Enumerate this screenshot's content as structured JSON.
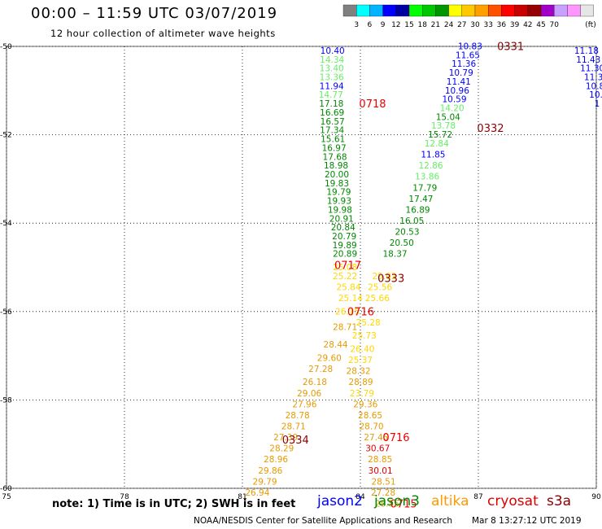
{
  "header": {
    "title": "00:00 – 11:59 UTC 03/07/2019",
    "subtitle": "12 hour collection of altimeter wave heights"
  },
  "color_scale": {
    "colors": [
      "#808080",
      "#00ffff",
      "#00b4ff",
      "#0000ff",
      "#0000a0",
      "#00ff00",
      "#00c800",
      "#009600",
      "#ffff00",
      "#ffc800",
      "#ffa000",
      "#ff5000",
      "#ff0000",
      "#c80000",
      "#960000",
      "#a000c8",
      "#c8a0ff",
      "#ff96ff",
      "#e6e6e6"
    ],
    "labels": [
      "3",
      "6",
      "9",
      "12",
      "15",
      "18",
      "21",
      "24",
      "27",
      "30",
      "33",
      "36",
      "39",
      "42",
      "45",
      "70"
    ],
    "unit": "(ft)"
  },
  "chart_data": {
    "type": "scatter",
    "xlim": [
      75,
      90
    ],
    "ylim": [
      -60,
      -50
    ],
    "x_ticks": [
      "75",
      "78",
      "81",
      "84",
      "87",
      "90"
    ],
    "y_ticks": [
      "-50",
      "-52",
      "-54",
      "-56",
      "-58",
      "-60"
    ],
    "grid": true,
    "points": [
      {
        "x": 83.29,
        "y": -50.1,
        "v": "10.40",
        "c": "#0000ff"
      },
      {
        "x": 83.28,
        "y": -50.3,
        "v": "14.34",
        "c": "#66ee66"
      },
      {
        "x": 83.27,
        "y": -50.5,
        "v": "13.40",
        "c": "#66ee66"
      },
      {
        "x": 83.27,
        "y": -50.7,
        "v": "13.36",
        "c": "#66ee66"
      },
      {
        "x": 83.27,
        "y": -50.9,
        "v": "11.94",
        "c": "#0000ff"
      },
      {
        "x": 83.25,
        "y": -51.1,
        "v": "14.77",
        "c": "#66ee66"
      },
      {
        "x": 83.26,
        "y": -51.3,
        "v": "17.18",
        "c": "#008800"
      },
      {
        "x": 83.28,
        "y": -51.5,
        "v": "16.69",
        "c": "#008800"
      },
      {
        "x": 83.29,
        "y": -51.7,
        "v": "16.57",
        "c": "#008800"
      },
      {
        "x": 83.28,
        "y": -51.9,
        "v": "17.34",
        "c": "#008800"
      },
      {
        "x": 83.3,
        "y": -52.1,
        "v": "15.61",
        "c": "#008800"
      },
      {
        "x": 83.33,
        "y": -52.3,
        "v": "16.97",
        "c": "#008800"
      },
      {
        "x": 83.35,
        "y": -52.5,
        "v": "17.68",
        "c": "#008800"
      },
      {
        "x": 83.38,
        "y": -52.7,
        "v": "18.98",
        "c": "#008800"
      },
      {
        "x": 83.4,
        "y": -52.9,
        "v": "20.00",
        "c": "#008800"
      },
      {
        "x": 83.4,
        "y": -53.1,
        "v": "19.83",
        "c": "#008800"
      },
      {
        "x": 83.45,
        "y": -53.3,
        "v": "19.79",
        "c": "#008800"
      },
      {
        "x": 83.46,
        "y": -53.5,
        "v": "19.93",
        "c": "#008800"
      },
      {
        "x": 83.48,
        "y": -53.7,
        "v": "19.98",
        "c": "#008800"
      },
      {
        "x": 83.52,
        "y": -53.9,
        "v": "20.91",
        "c": "#008800"
      },
      {
        "x": 83.56,
        "y": -54.1,
        "v": "20.84",
        "c": "#008800"
      },
      {
        "x": 83.59,
        "y": -54.3,
        "v": "20.79",
        "c": "#008800"
      },
      {
        "x": 83.6,
        "y": -54.5,
        "v": "19.89",
        "c": "#008800"
      },
      {
        "x": 83.61,
        "y": -54.7,
        "v": "20.89",
        "c": "#008800"
      },
      {
        "x": 83.61,
        "y": -55.0,
        "v": "25.08",
        "c": "#ffd700"
      },
      {
        "x": 83.61,
        "y": -55.2,
        "v": "25.22",
        "c": "#ffd700"
      },
      {
        "x": 83.7,
        "y": -55.45,
        "v": "25.84",
        "c": "#ffd700"
      },
      {
        "x": 83.75,
        "y": -55.7,
        "v": "25.14",
        "c": "#ffd700"
      },
      {
        "x": 83.67,
        "y": -56.0,
        "v": "26.15",
        "c": "#ffd700"
      },
      {
        "x": 83.61,
        "y": -56.35,
        "v": "28.71",
        "c": "#e69b00"
      },
      {
        "x": 83.37,
        "y": -56.75,
        "v": "28.44",
        "c": "#e69b00"
      },
      {
        "x": 83.21,
        "y": -57.05,
        "v": "29.60",
        "c": "#e69b00"
      },
      {
        "x": 82.99,
        "y": -57.3,
        "v": "27.28",
        "c": "#e69b00"
      },
      {
        "x": 82.84,
        "y": -57.6,
        "v": "26.18",
        "c": "#e69b00"
      },
      {
        "x": 82.7,
        "y": -57.85,
        "v": "29.06",
        "c": "#e69b00"
      },
      {
        "x": 82.58,
        "y": -58.1,
        "v": "27.96",
        "c": "#e69b00"
      },
      {
        "x": 82.4,
        "y": -58.35,
        "v": "28.78",
        "c": "#e69b00"
      },
      {
        "x": 82.3,
        "y": -58.6,
        "v": "28.71",
        "c": "#e69b00"
      },
      {
        "x": 82.1,
        "y": -58.85,
        "v": "27.39",
        "c": "#e69b00"
      },
      {
        "x": 82.0,
        "y": -59.1,
        "v": "28.29",
        "c": "#e69b00"
      },
      {
        "x": 81.85,
        "y": -59.35,
        "v": "28.96",
        "c": "#e69b00"
      },
      {
        "x": 81.71,
        "y": -59.6,
        "v": "29.86",
        "c": "#e69b00"
      },
      {
        "x": 81.57,
        "y": -59.85,
        "v": "29.79",
        "c": "#e69b00"
      },
      {
        "x": 81.38,
        "y": -60.1,
        "v": "26.94",
        "c": "#e69b00"
      },
      {
        "x": 86.79,
        "y": -50.0,
        "v": "10.83",
        "c": "#0000ff"
      },
      {
        "x": 86.73,
        "y": -50.2,
        "v": "11.65",
        "c": "#0000ff"
      },
      {
        "x": 86.63,
        "y": -50.4,
        "v": "11.36",
        "c": "#0000ff"
      },
      {
        "x": 86.56,
        "y": -50.6,
        "v": "10.79",
        "c": "#0000ff"
      },
      {
        "x": 86.5,
        "y": -50.8,
        "v": "11.41",
        "c": "#0000ff"
      },
      {
        "x": 86.46,
        "y": -51.0,
        "v": "10.96",
        "c": "#0000ff"
      },
      {
        "x": 86.39,
        "y": -51.2,
        "v": "10.59",
        "c": "#0000ff"
      },
      {
        "x": 86.33,
        "y": -51.4,
        "v": "14.20",
        "c": "#66ee66"
      },
      {
        "x": 86.23,
        "y": -51.6,
        "v": "15.04",
        "c": "#008800"
      },
      {
        "x": 86.11,
        "y": -51.8,
        "v": "13.78",
        "c": "#66ee66"
      },
      {
        "x": 86.03,
        "y": -52.0,
        "v": "15.72",
        "c": "#008800"
      },
      {
        "x": 85.94,
        "y": -52.2,
        "v": "12.84",
        "c": "#66ee66"
      },
      {
        "x": 85.85,
        "y": -52.45,
        "v": "11.85",
        "c": "#0000ff"
      },
      {
        "x": 85.79,
        "y": -52.7,
        "v": "12.86",
        "c": "#66ee66"
      },
      {
        "x": 85.7,
        "y": -52.95,
        "v": "13.86",
        "c": "#66ee66"
      },
      {
        "x": 85.64,
        "y": -53.2,
        "v": "17.79",
        "c": "#008800"
      },
      {
        "x": 85.54,
        "y": -53.45,
        "v": "17.47",
        "c": "#008800"
      },
      {
        "x": 85.46,
        "y": -53.7,
        "v": "16.89",
        "c": "#008800"
      },
      {
        "x": 85.31,
        "y": -53.95,
        "v": "16.05",
        "c": "#008800"
      },
      {
        "x": 85.19,
        "y": -54.2,
        "v": "20.53",
        "c": "#008800"
      },
      {
        "x": 85.05,
        "y": -54.45,
        "v": "20.50",
        "c": "#008800"
      },
      {
        "x": 84.88,
        "y": -54.7,
        "v": "18.37",
        "c": "#008800"
      },
      {
        "x": 84.61,
        "y": -55.2,
        "v": "25.02",
        "c": "#ffd700"
      },
      {
        "x": 84.5,
        "y": -55.45,
        "v": "25.56",
        "c": "#ffd700"
      },
      {
        "x": 84.43,
        "y": -55.7,
        "v": "25.66",
        "c": "#ffd700"
      },
      {
        "x": 84.2,
        "y": -56.25,
        "v": "25.28",
        "c": "#ffd700"
      },
      {
        "x": 84.1,
        "y": -56.55,
        "v": "25.73",
        "c": "#ffd700"
      },
      {
        "x": 84.05,
        "y": -56.85,
        "v": "26.40",
        "c": "#ffd700"
      },
      {
        "x": 84.0,
        "y": -57.1,
        "v": "25.37",
        "c": "#ffd700"
      },
      {
        "x": 83.95,
        "y": -57.35,
        "v": "28.32",
        "c": "#e69b00"
      },
      {
        "x": 84.01,
        "y": -57.6,
        "v": "28.89",
        "c": "#e69b00"
      },
      {
        "x": 84.04,
        "y": -57.85,
        "v": "23.79",
        "c": "#ffd700"
      },
      {
        "x": 84.13,
        "y": -58.1,
        "v": "29.36",
        "c": "#e69b00"
      },
      {
        "x": 84.25,
        "y": -58.35,
        "v": "28.65",
        "c": "#e69b00"
      },
      {
        "x": 84.28,
        "y": -58.6,
        "v": "28.70",
        "c": "#e69b00"
      },
      {
        "x": 84.4,
        "y": -58.85,
        "v": "27.45",
        "c": "#e69b00"
      },
      {
        "x": 84.44,
        "y": -59.1,
        "v": "30.67",
        "c": "#dd0000"
      },
      {
        "x": 84.5,
        "y": -59.35,
        "v": "28.85",
        "c": "#e69b00"
      },
      {
        "x": 84.51,
        "y": -59.6,
        "v": "30.01",
        "c": "#dd0000"
      },
      {
        "x": 84.59,
        "y": -59.85,
        "v": "28.51",
        "c": "#e69b00"
      },
      {
        "x": 84.58,
        "y": -60.1,
        "v": "27.28",
        "c": "#e69b00"
      },
      {
        "x": 84.68,
        "y": -60.35,
        "v": "28.55",
        "c": "#e69b00"
      },
      {
        "x": 89.75,
        "y": -50.1,
        "v": "11.18",
        "c": "#0000ff"
      },
      {
        "x": 89.8,
        "y": -50.3,
        "v": "11.43",
        "c": "#0000ff"
      },
      {
        "x": 89.9,
        "y": -50.5,
        "v": "11.30",
        "c": "#0000ff"
      },
      {
        "x": 89.93,
        "y": -50.7,
        "v": "11.3",
        "c": "#0000ff"
      },
      {
        "x": 89.97,
        "y": -50.9,
        "v": "10.8",
        "c": "#0000ff"
      },
      {
        "x": 89.99,
        "y": -51.1,
        "v": "10.",
        "c": "#0000ff"
      },
      {
        "x": 90.02,
        "y": -51.3,
        "v": "1",
        "c": "#0000ff"
      }
    ],
    "time_labels": [
      {
        "x": 87.82,
        "y": -50.0,
        "t": "0331",
        "c": "#880000"
      },
      {
        "x": 84.31,
        "y": -51.3,
        "t": "0718",
        "c": "#ee0000"
      },
      {
        "x": 87.31,
        "y": -51.85,
        "t": "0332",
        "c": "#880000"
      },
      {
        "x": 84.78,
        "y": -55.25,
        "t": "0333",
        "c": "#880000"
      },
      {
        "x": 83.68,
        "y": -54.95,
        "t": "0717",
        "c": "#ee0000"
      },
      {
        "x": 84.01,
        "y": -56.0,
        "t": "0716",
        "c": "#ee0000"
      },
      {
        "x": 82.35,
        "y": -58.9,
        "t": "0334",
        "c": "#880000"
      },
      {
        "x": 84.91,
        "y": -58.85,
        "t": "0716",
        "c": "#ee0000"
      },
      {
        "x": 85.1,
        "y": -60.35,
        "t": "0715",
        "c": "#ee0000"
      }
    ]
  },
  "note": "note:  1) Time is in UTC;  2) SWH is in feet",
  "legend": [
    {
      "name": "jason2",
      "color": "#0000ff"
    },
    {
      "name": "jason3",
      "color": "#008800"
    },
    {
      "name": "altika",
      "color": "#ff9900"
    },
    {
      "name": "cryosat",
      "color": "#dd0000"
    },
    {
      "name": "s3a",
      "color": "#880000"
    }
  ],
  "footer": {
    "left": "NOAA/NESDIS Center for Satellite Applications and Research",
    "right": "Mar  8 13:27:12 UTC 2019"
  }
}
